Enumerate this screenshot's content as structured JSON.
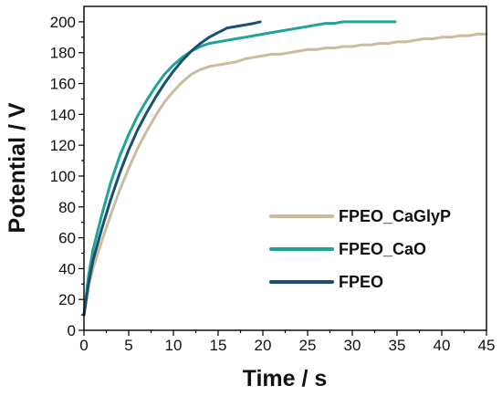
{
  "chart_data": {
    "type": "line",
    "title": "",
    "xlabel": "Time / s",
    "ylabel": "Potential / V",
    "xlim": [
      0,
      45
    ],
    "ylim": [
      0,
      210
    ],
    "x_ticks": [
      0,
      5,
      10,
      15,
      20,
      25,
      30,
      35,
      40,
      45
    ],
    "y_ticks": [
      0,
      20,
      40,
      60,
      80,
      100,
      120,
      140,
      160,
      180,
      200
    ],
    "grid": false,
    "legend_position": "lower-right",
    "series": [
      {
        "name": "FPEO_CaGlyP",
        "color": "#cbbb9f",
        "points": [
          [
            0,
            10
          ],
          [
            0.5,
            28
          ],
          [
            1,
            40
          ],
          [
            2,
            58
          ],
          [
            3,
            75
          ],
          [
            4,
            91
          ],
          [
            5,
            105
          ],
          [
            6,
            118
          ],
          [
            7,
            129
          ],
          [
            8,
            139
          ],
          [
            9,
            148
          ],
          [
            10,
            155
          ],
          [
            11,
            161
          ],
          [
            12,
            166
          ],
          [
            13,
            169
          ],
          [
            14,
            171
          ],
          [
            15,
            172
          ],
          [
            16,
            173
          ],
          [
            17,
            174
          ],
          [
            18,
            176
          ],
          [
            19,
            177
          ],
          [
            20,
            178
          ],
          [
            21,
            179
          ],
          [
            22,
            179
          ],
          [
            23,
            180
          ],
          [
            24,
            181
          ],
          [
            25,
            182
          ],
          [
            26,
            182
          ],
          [
            27,
            183
          ],
          [
            28,
            183
          ],
          [
            29,
            184
          ],
          [
            30,
            184
          ],
          [
            31,
            185
          ],
          [
            32,
            185
          ],
          [
            33,
            186
          ],
          [
            34,
            186
          ],
          [
            35,
            187
          ],
          [
            36,
            187
          ],
          [
            37,
            188
          ],
          [
            38,
            189
          ],
          [
            39,
            189
          ],
          [
            40,
            190
          ],
          [
            41,
            190
          ],
          [
            42,
            191
          ],
          [
            43,
            191
          ],
          [
            44,
            192
          ],
          [
            45,
            192
          ]
        ]
      },
      {
        "name": "FPEO_CaO",
        "color": "#1fa598",
        "points": [
          [
            0,
            10
          ],
          [
            0.5,
            35
          ],
          [
            1,
            52
          ],
          [
            2,
            75
          ],
          [
            3,
            96
          ],
          [
            4,
            113
          ],
          [
            5,
            127
          ],
          [
            6,
            139
          ],
          [
            7,
            149
          ],
          [
            8,
            158
          ],
          [
            9,
            166
          ],
          [
            10,
            172
          ],
          [
            11,
            177
          ],
          [
            12,
            181
          ],
          [
            13,
            184
          ],
          [
            14,
            186
          ],
          [
            15,
            187
          ],
          [
            16,
            188
          ],
          [
            17,
            189
          ],
          [
            18,
            190
          ],
          [
            19,
            191
          ],
          [
            20,
            192
          ],
          [
            21,
            193
          ],
          [
            22,
            194
          ],
          [
            23,
            195
          ],
          [
            24,
            196
          ],
          [
            25,
            197
          ],
          [
            26,
            198
          ],
          [
            27,
            199
          ],
          [
            28,
            199
          ],
          [
            29,
            200
          ],
          [
            30,
            200
          ],
          [
            31,
            200
          ],
          [
            32,
            200
          ],
          [
            33,
            200
          ],
          [
            34,
            200
          ],
          [
            34.8,
            200
          ]
        ]
      },
      {
        "name": "FPEO",
        "color": "#1b4f72",
        "points": [
          [
            0,
            10
          ],
          [
            0.5,
            30
          ],
          [
            1,
            45
          ],
          [
            2,
            66
          ],
          [
            3,
            85
          ],
          [
            4,
            102
          ],
          [
            5,
            117
          ],
          [
            6,
            130
          ],
          [
            7,
            141
          ],
          [
            8,
            151
          ],
          [
            9,
            160
          ],
          [
            10,
            168
          ],
          [
            11,
            175
          ],
          [
            12,
            181
          ],
          [
            13,
            186
          ],
          [
            14,
            190
          ],
          [
            15,
            193
          ],
          [
            16,
            196
          ],
          [
            17,
            197
          ],
          [
            18,
            198
          ],
          [
            19,
            199
          ],
          [
            19.7,
            200
          ]
        ]
      }
    ]
  }
}
